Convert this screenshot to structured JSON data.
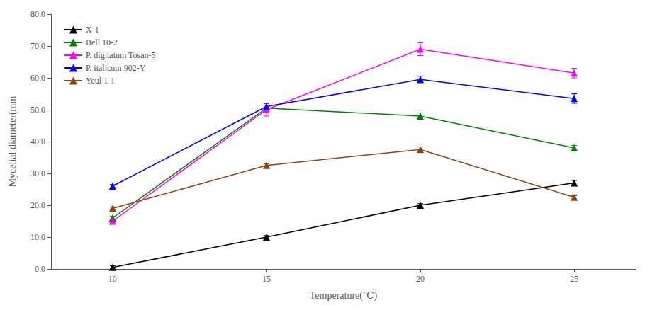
{
  "chart_data": {
    "type": "line",
    "x": [
      10,
      15,
      20,
      25
    ],
    "series": [
      {
        "name": "X-1",
        "color": "#000000",
        "marker": "triangle",
        "values": [
          0.5,
          10.0,
          20.0,
          27.0
        ],
        "yerr": [
          0.5,
          0.5,
          0.5,
          0.8
        ]
      },
      {
        "name": "Bell 10-2",
        "color": "#008000",
        "marker": "triangle",
        "values": [
          16.0,
          50.5,
          48.0,
          38.0
        ],
        "yerr": [
          0.5,
          1.5,
          1.0,
          0.8
        ]
      },
      {
        "name": "P. digitatum Tosan-5",
        "color": "#ff00ff",
        "marker": "triangle",
        "values": [
          15.0,
          50.0,
          69.0,
          61.5
        ],
        "yerr": [
          0.5,
          2.0,
          2.0,
          1.5
        ]
      },
      {
        "name": "P. italicum 902-Y",
        "color": "#0000ff",
        "marker": "triangle",
        "values": [
          26.0,
          51.0,
          59.5,
          53.5
        ],
        "yerr": [
          0.5,
          1.0,
          1.0,
          1.5
        ]
      },
      {
        "name": "Yeul 1-1",
        "color": "#8B4513",
        "marker": "triangle",
        "values": [
          19.0,
          32.5,
          37.5,
          22.5
        ],
        "yerr": [
          0.5,
          0.5,
          0.8,
          0.5
        ]
      }
    ],
    "xlabel": "Temperature(℃)",
    "ylabel": "Mycelial diameter(mm",
    "xlim": [
      8,
      27
    ],
    "xticks": [
      10,
      15,
      20,
      25
    ],
    "ylim": [
      0.0,
      80.0
    ],
    "yticks": [
      {
        "value": 0.0,
        "label": "0.0"
      },
      {
        "value": 10.0,
        "label": "10.0"
      },
      {
        "value": 20.0,
        "label": "20.0"
      },
      {
        "value": 30.0,
        "label": "30.0"
      },
      {
        "value": 40.0,
        "label": "40.0"
      },
      {
        "value": 50.0,
        "label": "50.0"
      },
      {
        "value": 60.0,
        "label": "60.0"
      },
      {
        "value": 70.0,
        "label": "70.0"
      },
      {
        "value": 80.0,
        "label": "80.0"
      }
    ],
    "grid": false,
    "legend": "upper left"
  }
}
